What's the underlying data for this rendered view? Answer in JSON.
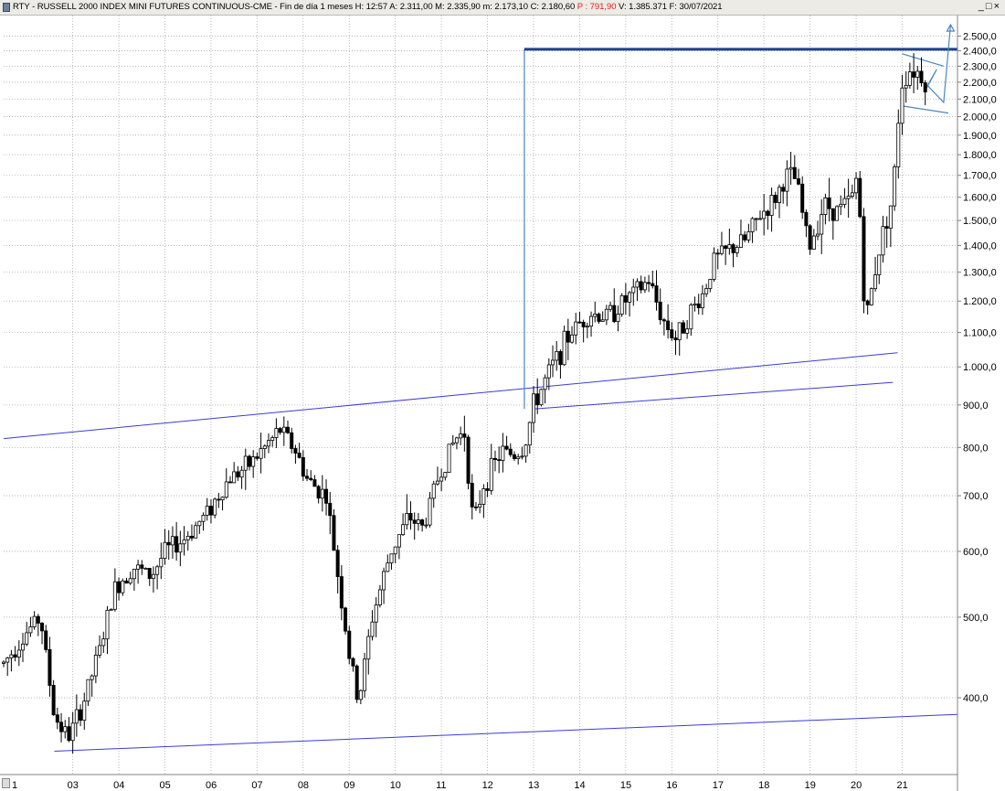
{
  "header": {
    "symbol": "RTY - RUSSELL 2000 INDEX MINI FUTURES CONTINUOUS-CME - Fin de día 1 meses",
    "time": "H: 12:57",
    "open": "A: 2.311,00",
    "high": "M: 2.335,90",
    "low": "m: 2.173,10",
    "close": "C: 2.180,60",
    "p": "P : 791,90",
    "volume": "V: 1.385.371",
    "date": "F: 30/07/2021",
    "window_buttons": [
      "_",
      "□",
      "×"
    ]
  },
  "colors": {
    "up_candle": "#ffffff",
    "down_candle": "#000000",
    "trendline": "#3b3bd6",
    "resistance": "#1f3f8f",
    "projection": "#4a86c0",
    "grid": "#a9a9a9",
    "p_value": "#e0201b"
  },
  "chart_data": {
    "type": "candlestick",
    "timeframe": "monthly",
    "scale": "log",
    "grid": true,
    "x_tick_labels": [
      "1",
      "03",
      "04",
      "05",
      "06",
      "07",
      "08",
      "09",
      "10",
      "11",
      "12",
      "13",
      "14",
      "15",
      "16",
      "17",
      "18",
      "19",
      "20",
      "21"
    ],
    "y_tick_labels": [
      400,
      500,
      600,
      700,
      800,
      900,
      1000,
      1100,
      1200,
      1300,
      1400,
      1500,
      1600,
      1700,
      1800,
      1900,
      2000,
      2100,
      2200,
      2300,
      2400,
      2500
    ],
    "y_tick_text": [
      "400,0",
      "500,0",
      "600,0",
      "700,0",
      "800,0",
      "900,0",
      "1.000,0",
      "1.100,0",
      "1.200,0",
      "1.300,0",
      "1.400,0",
      "1.500,0",
      "1.600,0",
      "1.700,0",
      "1.800,0",
      "1.900,0",
      "2.000,0",
      "2.100,0",
      "2.200,0",
      "2.300,0",
      "2.400,0",
      "2.500,0"
    ],
    "ylim": [
      330,
      2580
    ],
    "xlim": [
      2001.5,
      2022.2
    ],
    "anchors": [
      [
        2001.5,
        440
      ],
      [
        2002.0,
        480
      ],
      [
        2002.3,
        500
      ],
      [
        2002.6,
        380
      ],
      [
        2002.9,
        358
      ],
      [
        2003.2,
        390
      ],
      [
        2003.6,
        460
      ],
      [
        2003.9,
        540
      ],
      [
        2004.3,
        575
      ],
      [
        2004.7,
        560
      ],
      [
        2005.0,
        600
      ],
      [
        2005.4,
        620
      ],
      [
        2005.9,
        665
      ],
      [
        2006.4,
        735
      ],
      [
        2006.8,
        760
      ],
      [
        2007.3,
        815
      ],
      [
        2007.5,
        840
      ],
      [
        2007.8,
        800
      ],
      [
        2008.1,
        730
      ],
      [
        2008.5,
        700
      ],
      [
        2008.8,
        540
      ],
      [
        2009.0,
        450
      ],
      [
        2009.2,
        395
      ],
      [
        2009.5,
        500
      ],
      [
        2009.9,
        600
      ],
      [
        2010.3,
        660
      ],
      [
        2010.6,
        640
      ],
      [
        2010.9,
        730
      ],
      [
        2011.3,
        820
      ],
      [
        2011.5,
        835
      ],
      [
        2011.7,
        640
      ],
      [
        2011.9,
        720
      ],
      [
        2012.3,
        790
      ],
      [
        2012.6,
        785
      ],
      [
        2012.8,
        800
      ],
      [
        2013.0,
        900
      ],
      [
        2013.4,
        1000
      ],
      [
        2013.8,
        1100
      ],
      [
        2014.2,
        1160
      ],
      [
        2014.6,
        1150
      ],
      [
        2014.9,
        1190
      ],
      [
        2015.3,
        1240
      ],
      [
        2015.5,
        1270
      ],
      [
        2015.8,
        1140
      ],
      [
        2016.1,
        1080
      ],
      [
        2016.3,
        1140
      ],
      [
        2016.7,
        1230
      ],
      [
        2016.9,
        1340
      ],
      [
        2017.3,
        1390
      ],
      [
        2017.6,
        1420
      ],
      [
        2017.9,
        1520
      ],
      [
        2018.2,
        1580
      ],
      [
        2018.5,
        1700
      ],
      [
        2018.7,
        1680
      ],
      [
        2018.9,
        1460
      ],
      [
        2019.0,
        1400
      ],
      [
        2019.3,
        1570
      ],
      [
        2019.6,
        1540
      ],
      [
        2019.9,
        1590
      ],
      [
        2020.0,
        1680
      ],
      [
        2020.1,
        1490
      ],
      [
        2020.2,
        1120
      ],
      [
        2020.4,
        1300
      ],
      [
        2020.6,
        1470
      ],
      [
        2020.8,
        1600
      ],
      [
        2020.9,
        1950
      ],
      [
        2021.0,
        2200
      ],
      [
        2021.2,
        2290
      ],
      [
        2021.4,
        2250
      ],
      [
        2021.5,
        2200
      ]
    ],
    "annotations": {
      "resistance_line": {
        "x": [
          2012.8,
          2022.2
        ],
        "y": [
          2410,
          2410
        ]
      },
      "vertical_line": {
        "x": [
          2012.8,
          2012.8
        ],
        "y": [
          890,
          2410
        ]
      },
      "lower_trend_line": {
        "x": [
          2002.6,
          2022.2
        ],
        "y": [
          345,
          382
        ]
      },
      "middle_trend_line": {
        "x": [
          2001.5,
          2020.9
        ],
        "y": [
          820,
          1040
        ]
      },
      "middle_trend_line_ext": {
        "x": [
          2013.0,
          2020.8
        ],
        "y": [
          890,
          958
        ]
      },
      "triangle_upper": {
        "x": [
          2021.0,
          2021.9
        ],
        "y": [
          2380,
          2300
        ]
      },
      "triangle_lower": {
        "x": [
          2021.0,
          2022.0
        ],
        "y": [
          2060,
          2020
        ]
      },
      "projection_path": {
        "x": [
          2021.5,
          2021.75,
          2021.55,
          2021.9,
          2022.05
        ],
        "y": [
          2150,
          2280,
          2180,
          2080,
          2580
        ]
      }
    }
  }
}
